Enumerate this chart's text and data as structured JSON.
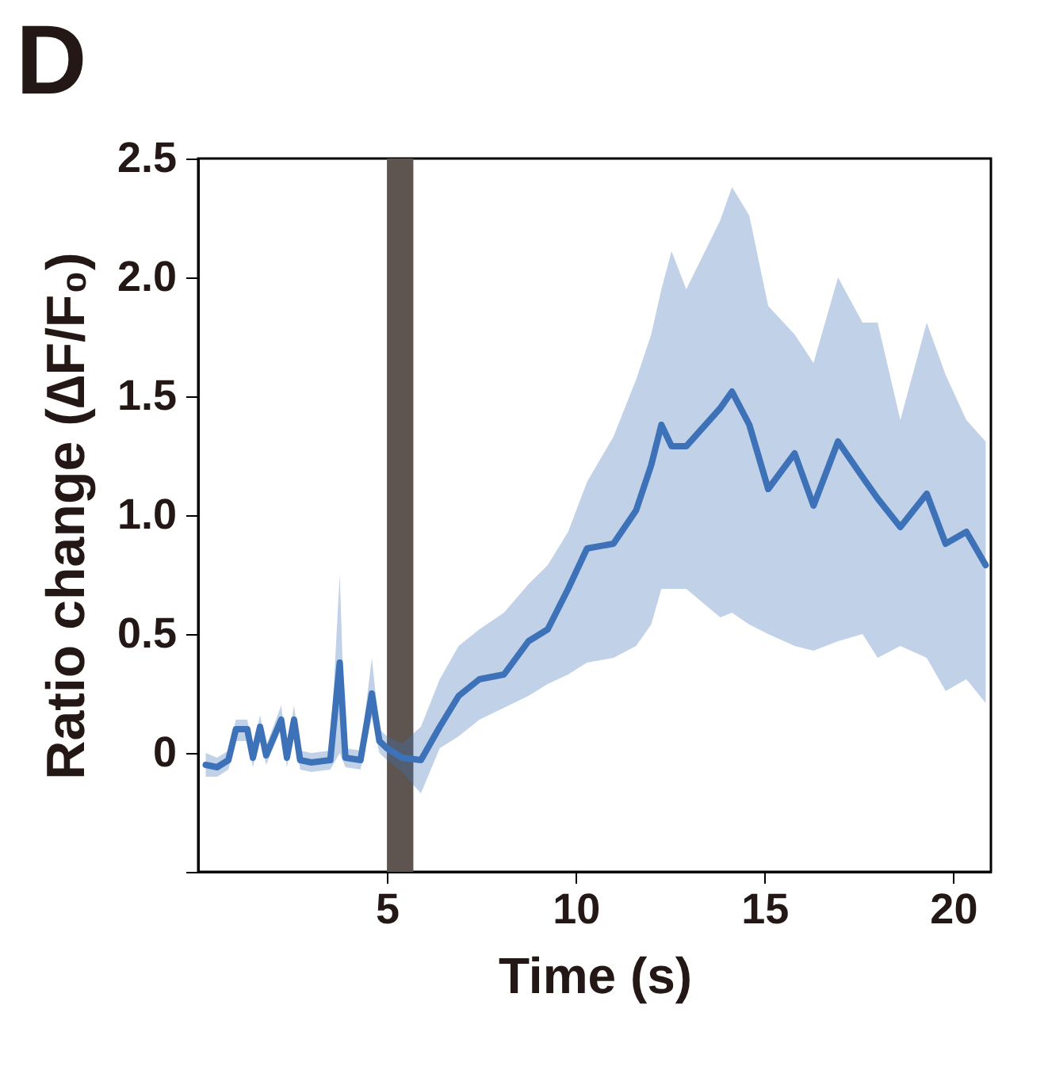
{
  "chart_data": {
    "type": "line",
    "title": "D",
    "xlabel": "Time (s)",
    "ylabel": "Ratio change (∆F/F₀)",
    "xlim": [
      0,
      21
    ],
    "xticks": [
      5,
      10,
      15,
      20
    ],
    "ylim": [
      -0.5,
      2.5
    ],
    "yticks": [
      {
        "value": -0.5,
        "label": null
      },
      0,
      0.5,
      {
        "value": 1,
        "label": "1.0"
      },
      1.5,
      {
        "value": 2,
        "label": "2.0"
      },
      2.5
    ],
    "grid": false,
    "bands": [
      {
        "axis": "x",
        "from": 5.0,
        "to": 5.7,
        "color": "#5e5450"
      }
    ],
    "series": [
      {
        "color": "#3d72b8",
        "x": [
          0.2,
          0.5,
          0.8,
          1.0,
          1.3,
          1.45,
          1.64,
          1.8,
          2.2,
          2.35,
          2.54,
          2.7,
          3.0,
          3.5,
          3.75,
          3.9,
          4.3,
          4.6,
          4.8,
          5.0,
          5.4,
          5.9,
          6.4,
          6.9,
          7.45,
          8.1,
          8.75,
          9.26,
          9.8,
          10.3,
          11.0,
          11.6,
          12.0,
          12.27,
          12.54,
          12.93,
          13.83,
          14.14,
          14.6,
          15.1,
          15.8,
          16.3,
          16.95,
          17.6,
          18.0,
          18.6,
          19.3,
          19.8,
          20.35,
          20.86
        ],
        "values": [
          -0.05,
          -0.06,
          -0.03,
          0.1,
          0.1,
          -0.02,
          0.11,
          -0.01,
          0.14,
          -0.02,
          0.14,
          -0.03,
          -0.04,
          -0.03,
          0.38,
          -0.02,
          -0.03,
          0.25,
          0.05,
          0.02,
          -0.02,
          -0.03,
          0.11,
          0.24,
          0.31,
          0.33,
          0.47,
          0.52,
          0.69,
          0.86,
          0.88,
          1.02,
          1.21,
          1.38,
          1.29,
          1.29,
          1.45,
          1.52,
          1.38,
          1.11,
          1.26,
          1.04,
          1.31,
          1.16,
          1.07,
          0.95,
          1.09,
          0.88,
          0.93,
          0.79
        ],
        "lower": [
          -0.1,
          -0.1,
          -0.07,
          0.05,
          0.05,
          -0.06,
          0.06,
          -0.05,
          0.1,
          -0.06,
          0.1,
          -0.07,
          -0.08,
          -0.07,
          0.0,
          -0.06,
          -0.07,
          0.15,
          0.0,
          -0.03,
          -0.08,
          -0.17,
          0.02,
          0.07,
          0.14,
          0.19,
          0.24,
          0.29,
          0.33,
          0.38,
          0.4,
          0.45,
          0.54,
          0.69,
          0.69,
          0.69,
          0.57,
          0.59,
          0.54,
          0.5,
          0.45,
          0.43,
          0.47,
          0.5,
          0.4,
          0.45,
          0.4,
          0.26,
          0.31,
          0.21
        ],
        "upper": [
          0.0,
          -0.02,
          0.01,
          0.14,
          0.14,
          0.02,
          0.16,
          0.03,
          0.2,
          0.02,
          0.2,
          0.01,
          0.0,
          0.01,
          0.75,
          0.02,
          0.01,
          0.4,
          0.1,
          0.07,
          0.04,
          0.11,
          0.31,
          0.45,
          0.52,
          0.59,
          0.71,
          0.79,
          0.93,
          1.14,
          1.33,
          1.57,
          1.76,
          1.95,
          2.11,
          1.95,
          2.24,
          2.38,
          2.26,
          1.88,
          1.76,
          1.64,
          2.0,
          1.81,
          1.81,
          1.4,
          1.81,
          1.59,
          1.4,
          1.31
        ]
      }
    ]
  }
}
